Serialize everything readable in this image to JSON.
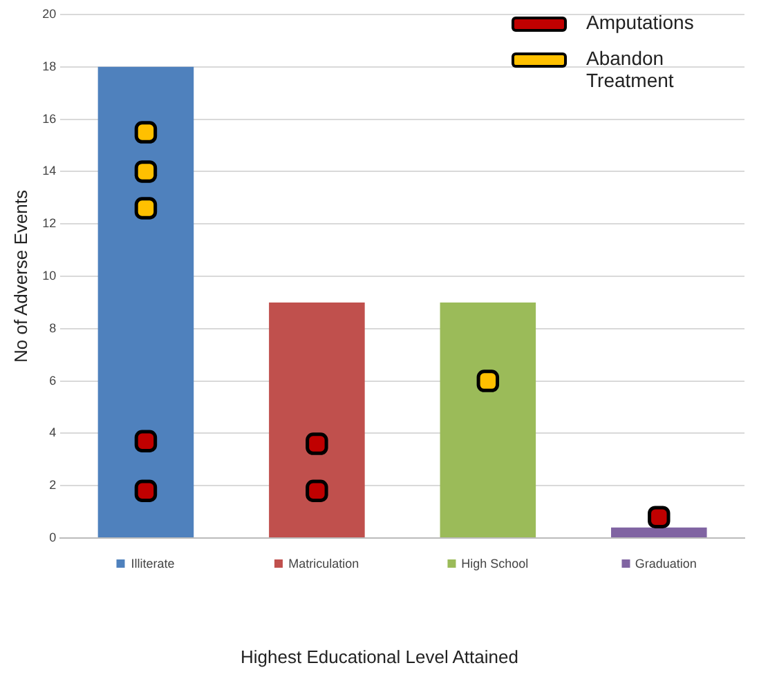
{
  "chart_data": {
    "type": "bar",
    "annotations": [
      "Highest Educational Level Attained"
    ],
    "ylabel": "No of Adverse Events",
    "categories": [
      "Illiterate",
      "Matriculation",
      "High School",
      "Graduation"
    ],
    "series": [
      {
        "colors": [
          "#4f81bd",
          "#c0504d",
          "#9bbb59",
          "#8064a2"
        ],
        "values": [
          18,
          9,
          9,
          0.4
        ]
      },
      {
        "type": "scatter",
        "name": "Amputations",
        "color": "#c00000",
        "x": [
          "Illiterate",
          "Illiterate",
          "Matriculation",
          "Matriculation",
          "Graduation"
        ],
        "values": [
          1.8,
          3.7,
          1.8,
          3.6,
          0.8
        ]
      },
      {
        "type": "scatter",
        "name": "Abandon Treatment",
        "color": "#ffc000",
        "x": [
          "Illiterate",
          "Illiterate",
          "Illiterate",
          "High School"
        ],
        "values": [
          12.6,
          14,
          15.5,
          6
        ]
      }
    ],
    "ylim": [
      0,
      20
    ],
    "yticks": [
      0,
      2,
      4,
      6,
      8,
      10,
      12,
      14,
      16,
      18,
      20
    ],
    "grid": "y",
    "legend": "top right",
    "marker": "square"
  }
}
